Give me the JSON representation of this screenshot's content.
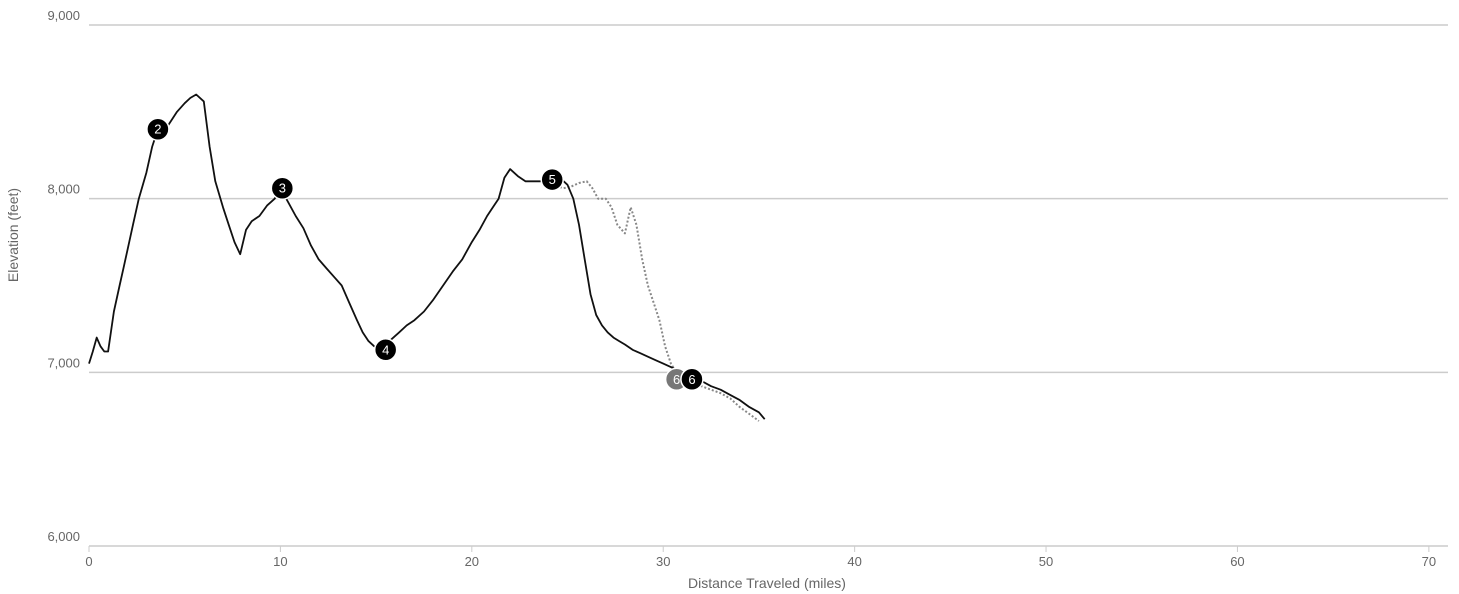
{
  "chart_data": {
    "type": "line",
    "title": "",
    "xlabel": "Distance Traveled (miles)",
    "ylabel": "Elevation (feet)",
    "xlim": [
      0,
      71
    ],
    "ylim": [
      6000,
      9000
    ],
    "x_ticks": [
      {
        "value": 0,
        "label": "0"
      },
      {
        "value": 10,
        "label": "10"
      },
      {
        "value": 20,
        "label": "20"
      },
      {
        "value": 30,
        "label": "30"
      },
      {
        "value": 40,
        "label": "40"
      },
      {
        "value": 50,
        "label": "50"
      },
      {
        "value": 60,
        "label": "60"
      },
      {
        "value": 70,
        "label": "70"
      }
    ],
    "y_ticks": [
      {
        "value": 6000,
        "label": "6,000"
      },
      {
        "value": 7000,
        "label": "7,000"
      },
      {
        "value": 8000,
        "label": "8,000"
      },
      {
        "value": 9000,
        "label": "9,000"
      }
    ],
    "grid": "horizontal",
    "colors": {
      "main": "#111111",
      "alternate": "#888888",
      "grid": "#cccccc",
      "marker_alt": "#777777"
    },
    "series": [
      {
        "style": "solid",
        "x": [
          0,
          0.2,
          0.4,
          0.6,
          0.8,
          1.0,
          1.3,
          1.6,
          1.8,
          2.0,
          2.3,
          2.6,
          3.0,
          3.3,
          3.6,
          3.8,
          4.0,
          4.3,
          4.6,
          5.0,
          5.3,
          5.6,
          6.0,
          6.3,
          6.6,
          7.0,
          7.3,
          7.6,
          7.9,
          8.2,
          8.5,
          8.9,
          9.3,
          9.7,
          10.0,
          10.4,
          10.8,
          11.2,
          11.6,
          12.0,
          12.4,
          12.8,
          13.2,
          13.6,
          14.0,
          14.3,
          14.6,
          14.9,
          15.2,
          15.5,
          15.8,
          16.2,
          16.6,
          17.0,
          17.5,
          18.0,
          18.5,
          19.0,
          19.5,
          20.0,
          20.4,
          20.8,
          21.1,
          21.4,
          21.7,
          22.0,
          22.4,
          22.8,
          23.2,
          23.6,
          24.0,
          24.4,
          24.8,
          25.0,
          25.3,
          25.6,
          25.9,
          26.2,
          26.5,
          26.8,
          27.1,
          27.4,
          27.7,
          28.0,
          28.4,
          28.8,
          29.2,
          29.6,
          30.0,
          30.4,
          30.8,
          31.2,
          31.6,
          32.0,
          32.5,
          33.0,
          33.5,
          34.0,
          34.5,
          35.0,
          35.3
        ],
        "y": [
          7050,
          7120,
          7200,
          7150,
          7120,
          7120,
          7350,
          7500,
          7600,
          7700,
          7850,
          8000,
          8150,
          8300,
          8400,
          8420,
          8400,
          8450,
          8500,
          8550,
          8580,
          8600,
          8560,
          8300,
          8100,
          7950,
          7850,
          7750,
          7680,
          7820,
          7870,
          7900,
          7960,
          8000,
          8060,
          7980,
          7900,
          7830,
          7730,
          7650,
          7600,
          7550,
          7500,
          7400,
          7300,
          7230,
          7180,
          7150,
          7140,
          7150,
          7190,
          7230,
          7270,
          7300,
          7350,
          7420,
          7500,
          7580,
          7650,
          7750,
          7820,
          7900,
          7950,
          8000,
          8120,
          8170,
          8130,
          8100,
          8100,
          8100,
          8110,
          8120,
          8100,
          8080,
          8000,
          7850,
          7650,
          7450,
          7330,
          7270,
          7230,
          7200,
          7180,
          7160,
          7130,
          7110,
          7090,
          7070,
          7050,
          7030,
          7010,
          6990,
          6970,
          6950,
          6920,
          6900,
          6870,
          6840,
          6800,
          6770,
          6730
        ]
      },
      {
        "style": "dotted",
        "x": [
          24.2,
          24.8,
          25.2,
          25.6,
          26.0,
          26.3,
          26.6,
          27.0,
          27.3,
          27.6,
          28.0,
          28.3,
          28.6,
          28.9,
          29.2,
          29.5,
          29.8,
          30.1,
          30.4,
          30.8,
          31.2,
          31.6,
          32.0,
          32.5,
          33.0,
          33.5,
          34.0,
          34.5,
          35.0
        ],
        "y": [
          8080,
          8060,
          8070,
          8090,
          8100,
          8060,
          8000,
          8000,
          7950,
          7850,
          7800,
          7950,
          7850,
          7650,
          7500,
          7400,
          7300,
          7150,
          7050,
          6980,
          6960,
          6940,
          6920,
          6900,
          6880,
          6850,
          6800,
          6760,
          6720
        ]
      }
    ],
    "markers": [
      {
        "label": "2",
        "x": 3.6,
        "y": 8400,
        "style": "dark"
      },
      {
        "label": "3",
        "x": 10.1,
        "y": 8060,
        "style": "dark"
      },
      {
        "label": "4",
        "x": 15.5,
        "y": 7130,
        "style": "dark"
      },
      {
        "label": "5",
        "x": 24.2,
        "y": 8110,
        "style": "dark"
      },
      {
        "label": "6",
        "x": 30.7,
        "y": 6960,
        "style": "gray"
      },
      {
        "label": "6",
        "x": 31.5,
        "y": 6960,
        "style": "dark"
      }
    ]
  }
}
